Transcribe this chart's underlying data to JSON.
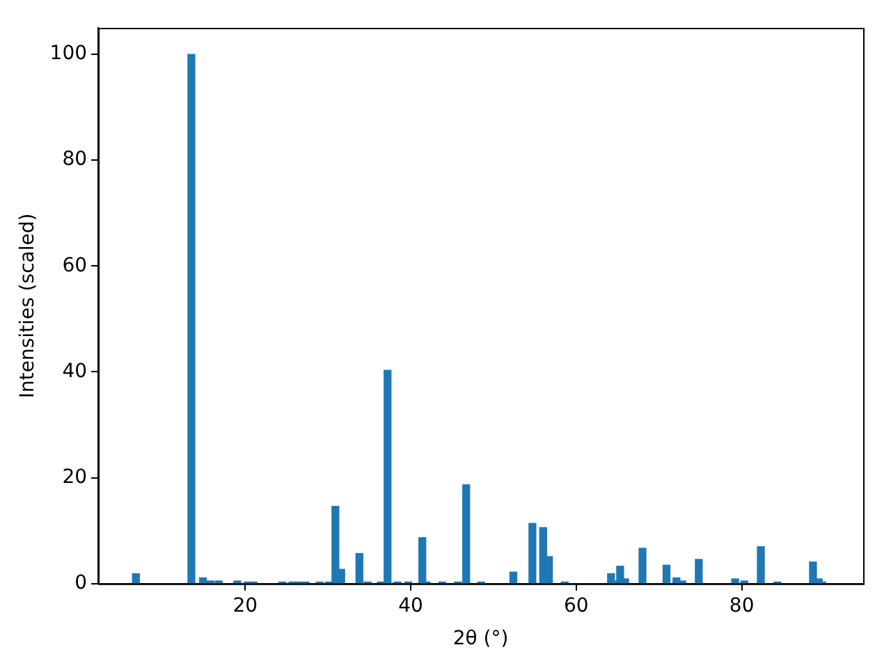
{
  "chart_data": {
    "type": "bar",
    "xlabel": "2θ (°)",
    "ylabel": "Intensities (scaled)",
    "x": [
      6.8,
      13.5,
      14.9,
      15.8,
      16.8,
      19.05,
      20.3,
      21.0,
      24.5,
      25.7,
      26.5,
      27.3,
      29.0,
      30.1,
      30.9,
      31.6,
      33.8,
      34.8,
      36.4,
      37.2,
      38.4,
      39.7,
      41.4,
      41.9,
      43.8,
      45.7,
      46.7,
      48.5,
      52.4,
      54.7,
      56.0,
      56.7,
      58.6,
      64.2,
      64.8,
      65.3,
      65.9,
      68.0,
      70.9,
      72.1,
      72.8,
      74.8,
      79.2,
      80.3,
      82.3,
      84.3,
      88.6,
      89.3,
      89.7
    ],
    "values": [
      1.9,
      100,
      1.1,
      0.5,
      0.5,
      0.5,
      0.3,
      0.3,
      0.3,
      0.3,
      0.3,
      0.3,
      0.3,
      0.3,
      14.6,
      2.7,
      5.7,
      0.3,
      0.3,
      40.3,
      0.3,
      0.3,
      8.7,
      0.3,
      0.3,
      0.3,
      18.7,
      0.3,
      2.2,
      11.4,
      10.6,
      5.1,
      0.3,
      1.9,
      0.5,
      3.3,
      0.9,
      6.7,
      3.5,
      1.1,
      0.5,
      4.6,
      0.9,
      0.5,
      7.0,
      0.3,
      4.1,
      0.9,
      0.3
    ],
    "color": "#1f77b4",
    "xlim": [
      2.24,
      94.66
    ],
    "xticks": [
      20,
      40,
      60,
      80
    ],
    "ylim": [
      0,
      105
    ],
    "yticks": [
      0,
      20,
      40,
      60,
      80,
      100
    ],
    "grid": false,
    "legend": false
  }
}
